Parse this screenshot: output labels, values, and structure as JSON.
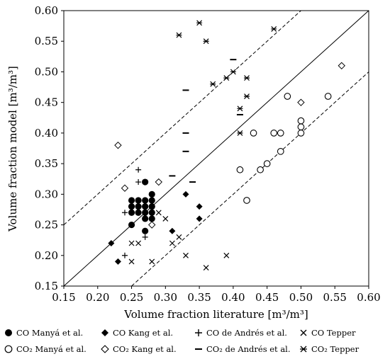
{
  "chart_data": {
    "type": "scatter",
    "xlabel": "Volume fraction literature [m³/m³]",
    "ylabel": "Volume fraction model [m³/m³]",
    "xlim": [
      0.15,
      0.6
    ],
    "ylim": [
      0.15,
      0.6
    ],
    "x_ticks": [
      "0.15",
      "0.20",
      "0.25",
      "0.30",
      "0.35",
      "0.40",
      "0.45",
      "0.50",
      "0.55",
      "0.60"
    ],
    "y_ticks": [
      "0.15",
      "0.20",
      "0.25",
      "0.30",
      "0.35",
      "0.40",
      "0.45",
      "0.50",
      "0.55",
      "0.60"
    ],
    "grid": false,
    "legend_position": "bottom",
    "reference_lines": [
      {
        "style": "solid",
        "offset": 0.0
      },
      {
        "style": "dashed",
        "offset": 0.1
      },
      {
        "style": "dashed",
        "offset": -0.1
      }
    ],
    "series": [
      {
        "name": "CO Manyá et al.",
        "gas": "CO",
        "author": " Manyá et al.",
        "marker": "filled-circle",
        "points": [
          [
            0.25,
            0.29
          ],
          [
            0.26,
            0.29
          ],
          [
            0.27,
            0.29
          ],
          [
            0.25,
            0.28
          ],
          [
            0.26,
            0.28
          ],
          [
            0.25,
            0.27
          ],
          [
            0.26,
            0.27
          ],
          [
            0.27,
            0.27
          ],
          [
            0.28,
            0.27
          ],
          [
            0.28,
            0.26
          ],
          [
            0.27,
            0.26
          ],
          [
            0.28,
            0.28
          ],
          [
            0.28,
            0.29
          ],
          [
            0.27,
            0.28
          ],
          [
            0.25,
            0.25
          ],
          [
            0.27,
            0.32
          ],
          [
            0.28,
            0.3
          ],
          [
            0.27,
            0.24
          ]
        ]
      },
      {
        "name": "CO Kang et al.",
        "gas": "CO",
        "author": " Kang et al.",
        "marker": "filled-diamond",
        "points": [
          [
            0.22,
            0.22
          ],
          [
            0.23,
            0.19
          ],
          [
            0.31,
            0.24
          ],
          [
            0.33,
            0.3
          ],
          [
            0.35,
            0.28
          ],
          [
            0.35,
            0.26
          ]
        ]
      },
      {
        "name": "CO de Andrés et al.",
        "gas": "CO",
        "author": " de Andrés et al.",
        "marker": "plus",
        "points": [
          [
            0.24,
            0.27
          ],
          [
            0.26,
            0.34
          ],
          [
            0.26,
            0.32
          ],
          [
            0.27,
            0.23
          ],
          [
            0.24,
            0.2
          ]
        ]
      },
      {
        "name": "CO Tepper",
        "gas": "CO",
        "author": " Tepper",
        "marker": "x",
        "points": [
          [
            0.25,
            0.22
          ],
          [
            0.26,
            0.22
          ],
          [
            0.25,
            0.19
          ],
          [
            0.28,
            0.19
          ],
          [
            0.29,
            0.27
          ],
          [
            0.3,
            0.26
          ],
          [
            0.31,
            0.22
          ],
          [
            0.32,
            0.23
          ],
          [
            0.33,
            0.2
          ],
          [
            0.36,
            0.18
          ],
          [
            0.39,
            0.2
          ]
        ]
      },
      {
        "name": "CO₂ Manyá et al.",
        "gas": "CO₂",
        "author": " Manyá et al.",
        "marker": "open-circle",
        "points": [
          [
            0.41,
            0.34
          ],
          [
            0.42,
            0.29
          ],
          [
            0.43,
            0.4
          ],
          [
            0.44,
            0.34
          ],
          [
            0.45,
            0.35
          ],
          [
            0.46,
            0.4
          ],
          [
            0.47,
            0.4
          ],
          [
            0.47,
            0.37
          ],
          [
            0.48,
            0.46
          ],
          [
            0.5,
            0.42
          ],
          [
            0.5,
            0.41
          ],
          [
            0.5,
            0.4
          ],
          [
            0.54,
            0.46
          ]
        ]
      },
      {
        "name": "CO₂ Kang et al.",
        "gas": "CO₂",
        "author": " Kang et al.",
        "marker": "open-diamond",
        "points": [
          [
            0.23,
            0.38
          ],
          [
            0.24,
            0.31
          ],
          [
            0.28,
            0.25
          ],
          [
            0.29,
            0.32
          ],
          [
            0.5,
            0.45
          ],
          [
            0.56,
            0.51
          ]
        ]
      },
      {
        "name": "CO₂ de Andrés et al.",
        "gas": "CO₂",
        "author": " de Andrés et al.",
        "marker": "dash",
        "points": [
          [
            0.31,
            0.33
          ],
          [
            0.33,
            0.47
          ],
          [
            0.33,
            0.4
          ],
          [
            0.33,
            0.37
          ],
          [
            0.34,
            0.32
          ],
          [
            0.4,
            0.52
          ],
          [
            0.41,
            0.43
          ]
        ]
      },
      {
        "name": "CO₂ Tepper",
        "gas": "CO₂",
        "author": " Tepper",
        "marker": "asterisk",
        "points": [
          [
            0.32,
            0.56
          ],
          [
            0.35,
            0.58
          ],
          [
            0.36,
            0.55
          ],
          [
            0.37,
            0.48
          ],
          [
            0.39,
            0.49
          ],
          [
            0.4,
            0.5
          ],
          [
            0.41,
            0.44
          ],
          [
            0.41,
            0.4
          ],
          [
            0.42,
            0.49
          ],
          [
            0.42,
            0.46
          ],
          [
            0.46,
            0.57
          ]
        ]
      }
    ]
  }
}
